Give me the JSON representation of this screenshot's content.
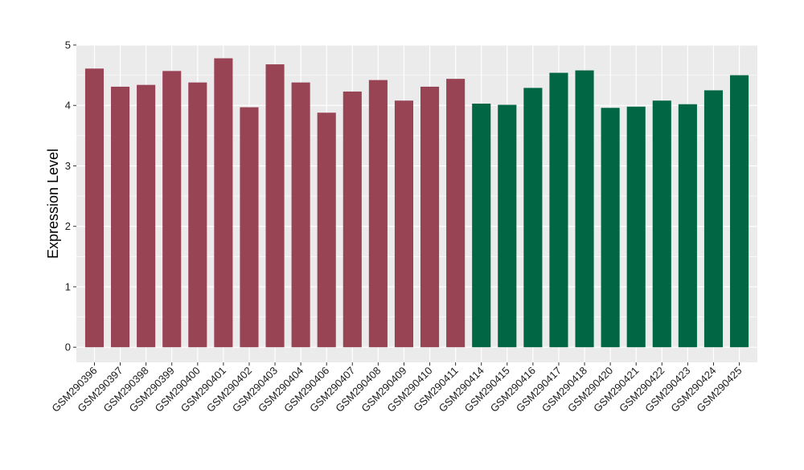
{
  "chart_data": {
    "type": "bar",
    "title": "",
    "xlabel": "",
    "ylabel": "Expression Level",
    "ylim": [
      -0.25,
      5.0
    ],
    "yticks": [
      0,
      1,
      2,
      3,
      4,
      5
    ],
    "grid": true,
    "legend": "none",
    "background_color": "#EBEBEB",
    "gridline_color": "#FFFFFF",
    "categories": [
      "GSM290396",
      "GSM290397",
      "GSM290398",
      "GSM290399",
      "GSM290400",
      "GSM290401",
      "GSM290402",
      "GSM290403",
      "GSM290404",
      "GSM290406",
      "GSM290407",
      "GSM290408",
      "GSM290409",
      "GSM290410",
      "GSM290411",
      "GSM290414",
      "GSM290415",
      "GSM290416",
      "GSM290417",
      "GSM290418",
      "GSM290420",
      "GSM290421",
      "GSM290422",
      "GSM290423",
      "GSM290424",
      "GSM290425"
    ],
    "values": [
      4.61,
      4.31,
      4.34,
      4.57,
      4.38,
      4.78,
      3.97,
      4.68,
      4.38,
      3.88,
      4.23,
      4.42,
      4.08,
      4.31,
      4.44,
      4.03,
      4.01,
      4.29,
      4.54,
      4.58,
      3.96,
      3.98,
      4.08,
      4.02,
      4.25,
      4.5
    ],
    "groups": [
      0,
      0,
      0,
      0,
      0,
      0,
      0,
      0,
      0,
      0,
      0,
      0,
      0,
      0,
      0,
      1,
      1,
      1,
      1,
      1,
      1,
      1,
      1,
      1,
      1,
      1
    ],
    "group_colors": [
      "#994455",
      "#006644"
    ]
  }
}
